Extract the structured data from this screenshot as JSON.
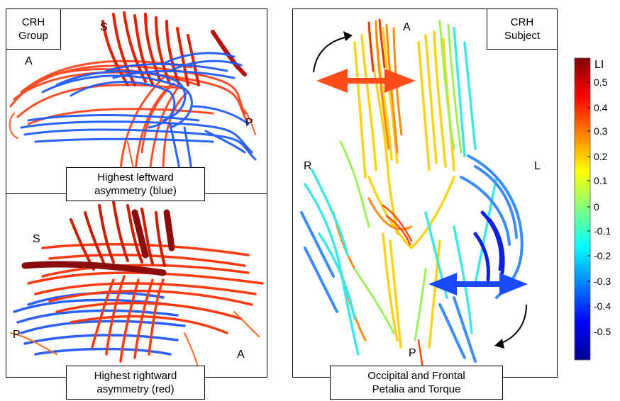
{
  "left_panel": {
    "top": {
      "corner_label_line1": "CRH",
      "corner_label_line2": "Group",
      "dir_s": "S",
      "dir_a": "A",
      "dir_p": "P",
      "caption_line1": "Highest leftward",
      "caption_line2": "asymmetry (blue)"
    },
    "bottom": {
      "dir_s": "S",
      "dir_p": "P",
      "dir_a": "A",
      "caption_line1": "Highest rightward",
      "caption_line2": "asymmetry (red)"
    }
  },
  "right_panel": {
    "corner_label_line1": "CRH",
    "corner_label_line2": "Subject",
    "dir_a": "A",
    "dir_r": "R",
    "dir_l": "L",
    "dir_p": "P",
    "caption_line1": "Occipital and Frontal",
    "caption_line2": "Petalia and Torque"
  },
  "colorbar": {
    "title": "LI",
    "ticks": [
      "0.5",
      "0.4",
      "0.3",
      "0.2",
      "0.1",
      "0",
      "-0.1",
      "-0.2",
      "-0.3",
      "-0.4",
      "-0.5"
    ],
    "colors": {
      "low": "#00008f",
      "mid_low": "#0080ff",
      "mid": "#40ffc0",
      "mid_high": "#ffcf00",
      "high": "#800000"
    }
  }
}
